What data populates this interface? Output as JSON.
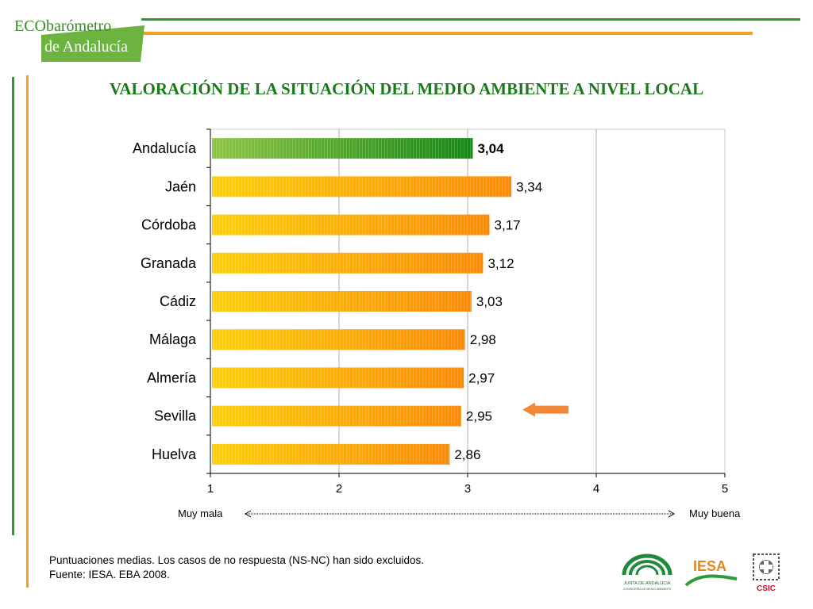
{
  "header": {
    "logo_line1": "ECObarómetro",
    "logo_line2": "de Andalucía",
    "title": "VALORACIÓN DE LA SITUACIÓN DEL MEDIO AMBIENTE A NIVEL LOCAL"
  },
  "chart_data": {
    "type": "bar",
    "orientation": "horizontal",
    "categories": [
      "Andalucía",
      "Jaén",
      "Córdoba",
      "Granada",
      "Cádiz",
      "Málaga",
      "Almería",
      "Sevilla",
      "Huelva"
    ],
    "values": [
      3.04,
      3.34,
      3.17,
      3.12,
      3.03,
      2.98,
      2.97,
      2.95,
      2.86
    ],
    "value_labels": [
      "3,04",
      "3,34",
      "3,17",
      "3,12",
      "3,03",
      "2,98",
      "2,97",
      "2,95",
      "2,86"
    ],
    "highlight_category": "Andalucía",
    "arrow_marker_category": "Sevilla",
    "xlim": [
      1,
      5
    ],
    "xticks": [
      "1",
      "2",
      "3",
      "4",
      "5"
    ],
    "scale_low_label": "Muy mala",
    "scale_high_label": "Muy buena",
    "grid": true,
    "colors": {
      "bar_start": "#ffd000",
      "bar_end": "#ff8a00",
      "highlight_start": "#8cc63f",
      "highlight_end": "#128a12",
      "arrow": "#f08a3a",
      "grid": "#c8c8c8"
    }
  },
  "footer": {
    "note_line1": "Puntuaciones medias. Los casos de no respuesta (NS-NC) han sido excluidos.",
    "note_line2": "Fuente: IESA. EBA 2008.",
    "logo_junta_text": "JUNTA DE ANDALUCIA",
    "logo_junta_sub": "CONSEJERÍA DE MEDIO AMBIENTE",
    "logo_iesa": "IESA",
    "logo_csic": "CSIC"
  }
}
